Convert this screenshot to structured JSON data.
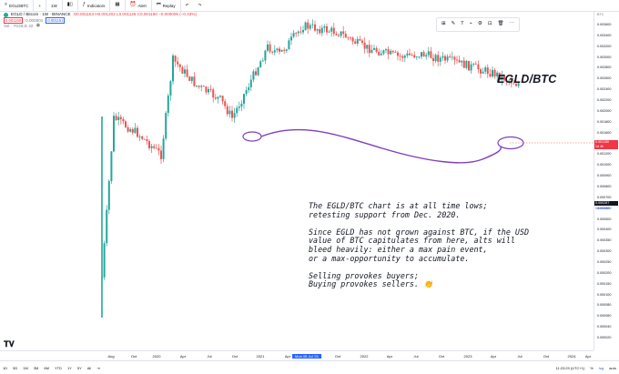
{
  "topbar": {
    "symbol": "EGLDBTC",
    "add": "+",
    "interval": "1W",
    "indicators": "Indicators",
    "alert": "Alert",
    "replay": "Replay",
    "undo": "↶",
    "redo": "↷"
  },
  "legend": {
    "title": "EGLD / Bitcoin · 1W · BINANCE",
    "ohlc": "O0.001153 H0.001202 L0.001126 C0.001150 −0.000005 (−0.43%)",
    "price_sell": "0.001150",
    "qty": "0.000001",
    "price_buy": "0.001151",
    "vol": "Vol · 7GOLD 22",
    "vol_icon": "eye-icon"
  },
  "colors": {
    "up": "#26a69a",
    "down": "#ef5350",
    "purple": "#7e3fbf",
    "accent": "#2962ff"
  },
  "price_scale": {
    "unit": "BTC",
    "ticks": [
      "0.003600",
      "0.003400",
      "0.003200",
      "0.003000",
      "0.002800",
      "0.002600",
      "0.002400",
      "0.002200",
      "0.002000",
      "0.001800",
      "0.001600",
      "0.001400",
      "0.001200",
      "0.001000",
      "0.000900",
      "0.000800",
      "0.000700",
      "0.000600",
      "0.000500",
      "0.000400",
      "0.000350",
      "0.000300",
      "0.000250",
      "0.000200",
      "0.000150",
      "0.000100",
      "0.000080",
      "0.000060",
      "0.000040",
      "0.000020"
    ],
    "last_price": "0.001150",
    "last_time": "1d 4h",
    "marker_black": "0.000287",
    "marker_blue": "0.000286"
  },
  "time_scale": {
    "labels": [
      "Aug",
      "Oct",
      "2020",
      "Apr",
      "Jul",
      "Oct",
      "2021",
      "Apr",
      "Mon 05 Jul '21",
      "Oct",
      "2022",
      "Apr",
      "Jul",
      "Oct",
      "2023",
      "Apr",
      "Jul",
      "Oct",
      "2024",
      "Apr"
    ],
    "highlighted": "Mon 05 Jul '21"
  },
  "bottom_bar": {
    "ranges": [
      "1D",
      "5D",
      "1M",
      "3M",
      "6M",
      "YTD",
      "1Y",
      "5Y",
      "All"
    ],
    "goto": "⇥",
    "clock": "11:23:29 (UTC+1)",
    "pct": "%",
    "log": "log",
    "auto": "auto"
  },
  "drawing_toolbar": {
    "icons": [
      "grid-icon",
      "pencil-icon",
      "text-icon",
      "brush-icon",
      "settings-icon",
      "lock-icon",
      "trash-icon",
      "more-icon"
    ]
  },
  "annotations": {
    "title": "EGLD/BTC",
    "note": "The EGLD/BTC chart is at all time lows;\nretesting support from Dec. 2020.\n\nSince EGLD has not grown against BTC, if the USD\nvalue of BTC capitulates from here, alts will\nbleed heavily: either a max pain event,\nor a max-opportunity to accumulate.\n\nSelling provokes buyers;\nBuying provokes sellers. 👏"
  },
  "chart_data": {
    "type": "candlestick",
    "symbol": "EGLD / Bitcoin",
    "interval": "1W",
    "exchange": "BINANCE",
    "log_scale": true,
    "ylim": [
      1e-05,
      0.0036
    ],
    "series": [
      {
        "date": "2020-07",
        "close": 3e-05
      },
      {
        "date": "2020-08",
        "close": 0.0006
      },
      {
        "date": "2020-10",
        "close": 0.00045
      },
      {
        "date": "2020-12",
        "close": 0.0003
      },
      {
        "date": "2021-01",
        "close": 0.0018
      },
      {
        "date": "2021-03",
        "close": 0.0011
      },
      {
        "date": "2021-05",
        "close": 0.00085
      },
      {
        "date": "2021-06",
        "close": 0.0006
      },
      {
        "date": "2021-09",
        "close": 0.0023
      },
      {
        "date": "2021-10",
        "close": 0.002
      },
      {
        "date": "2021-12",
        "close": 0.0034
      },
      {
        "date": "2022-03",
        "close": 0.003
      },
      {
        "date": "2022-05",
        "close": 0.0023
      },
      {
        "date": "2022-08",
        "close": 0.0019
      },
      {
        "date": "2022-10",
        "close": 0.002
      },
      {
        "date": "2023-01",
        "close": 0.0017
      },
      {
        "date": "2023-04",
        "close": 0.0014
      },
      {
        "date": "2023-06",
        "close": 0.00115
      }
    ]
  }
}
